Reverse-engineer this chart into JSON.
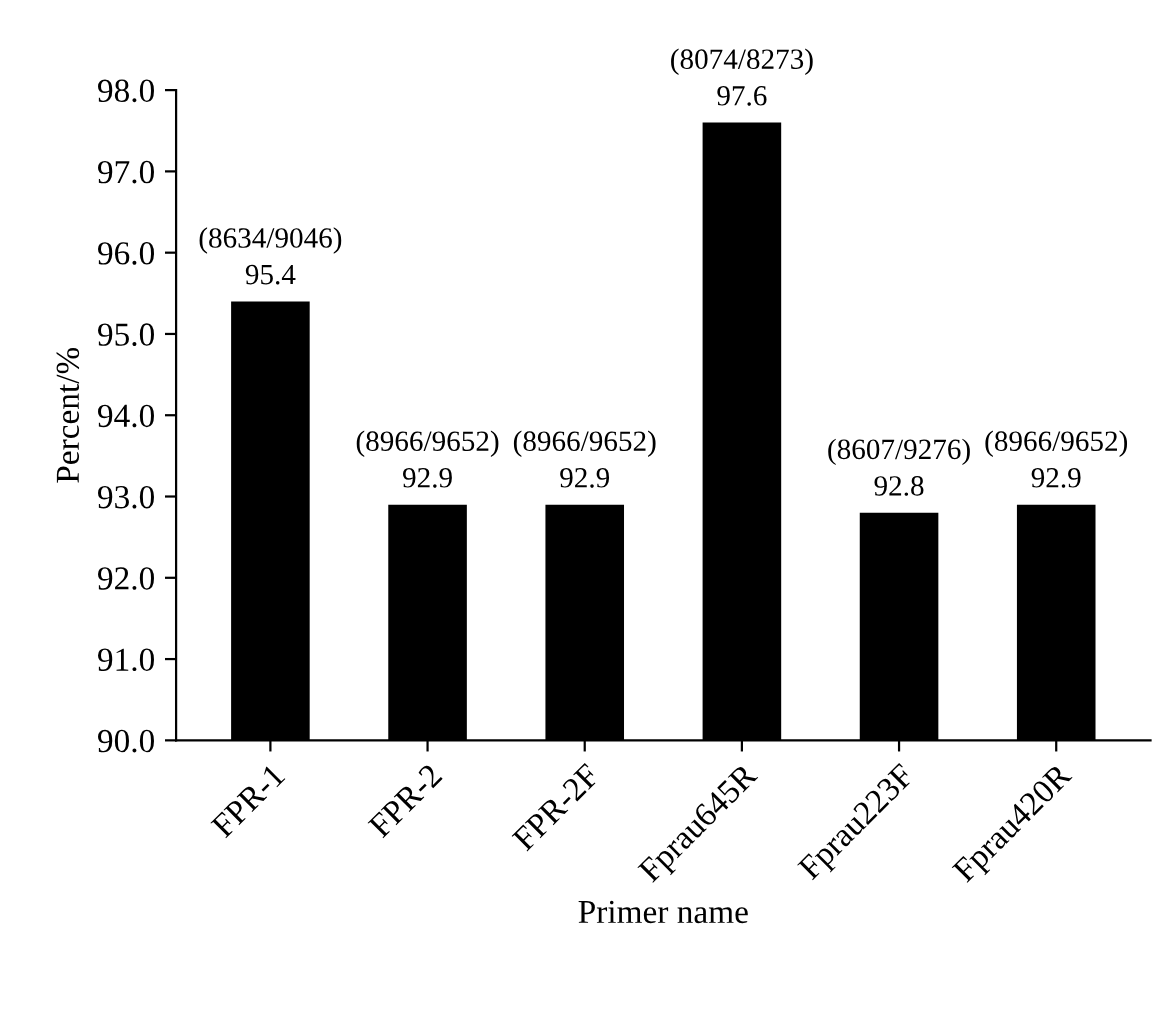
{
  "chart_data": {
    "type": "bar",
    "xlabel": "Primer name",
    "ylabel": "Percent/%",
    "categories": [
      "FPR-1",
      "FPR-2",
      "FPR-2F",
      "Fprau645R",
      "Fprau223F",
      "Fprau420R"
    ],
    "values": [
      95.4,
      92.9,
      92.9,
      97.6,
      92.8,
      92.9
    ],
    "value_labels": [
      "(8634/9046)\n95.4",
      "(8966/9652)\n92.9",
      "(8966/9652)\n92.9",
      "(8074/8273)\n97.6",
      "(8607/9276)\n92.8",
      "(8966/9652)\n92.9"
    ],
    "color": "#000000",
    "ylim": [
      90,
      98
    ],
    "yticks": [
      {
        "value": 90,
        "label": "90.0"
      },
      {
        "value": 91,
        "label": "91.0"
      },
      {
        "value": 92,
        "label": "92.0"
      },
      {
        "value": 93,
        "label": "93.0"
      },
      {
        "value": 94,
        "label": "94.0"
      },
      {
        "value": 95,
        "label": "95.0"
      },
      {
        "value": 96,
        "label": "96.0"
      },
      {
        "value": 97,
        "label": "97.0"
      },
      {
        "value": 98,
        "label": "98.0"
      }
    ],
    "grid": false,
    "legend": false
  }
}
